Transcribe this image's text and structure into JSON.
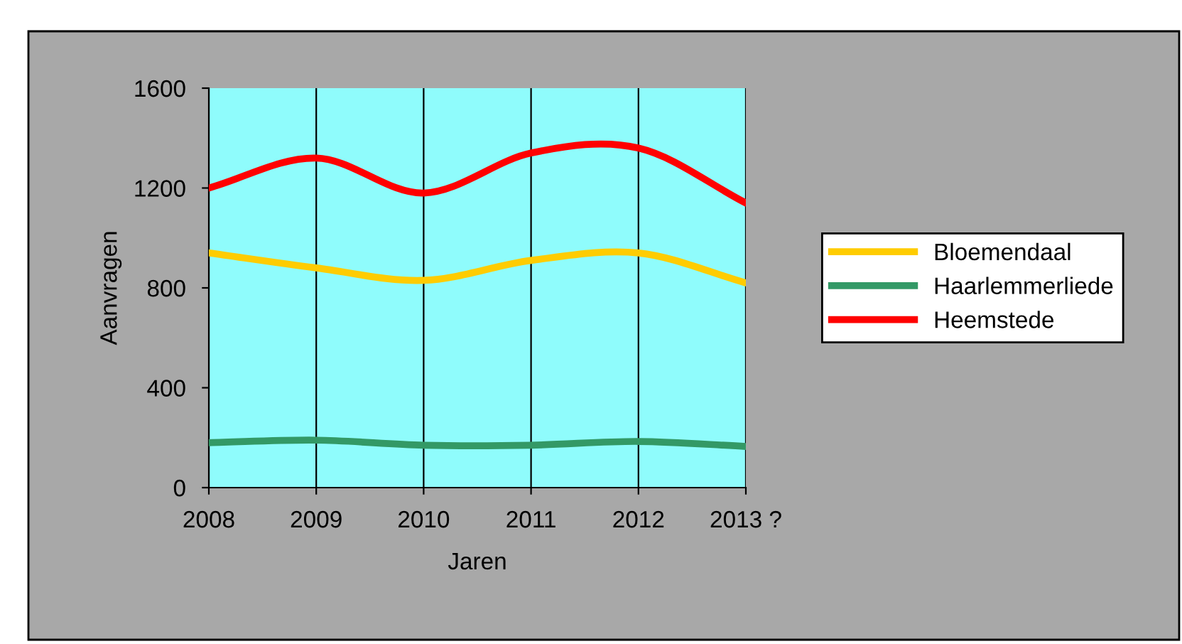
{
  "chart_data": {
    "type": "line",
    "xlabel": "Jaren",
    "ylabel": "Aanvragen",
    "categories": [
      "2008",
      "2009",
      "2010",
      "2011",
      "2012",
      "2013 ?"
    ],
    "series": [
      {
        "name": "Bloemendaal",
        "color": "#ffcc00",
        "values": [
          940,
          880,
          830,
          910,
          940,
          820
        ]
      },
      {
        "name": "Haarlemmerliede",
        "color": "#339966",
        "values": [
          180,
          190,
          170,
          170,
          185,
          165
        ]
      },
      {
        "name": "Heemstede",
        "color": "#ff0000",
        "values": [
          1200,
          1320,
          1180,
          1340,
          1360,
          1140
        ]
      }
    ],
    "ylim": [
      0,
      1600
    ],
    "yticks": [
      0,
      400,
      800,
      1200,
      1600
    ],
    "grid": "x",
    "legend": "right",
    "marker": "none",
    "line_style": "solid"
  }
}
